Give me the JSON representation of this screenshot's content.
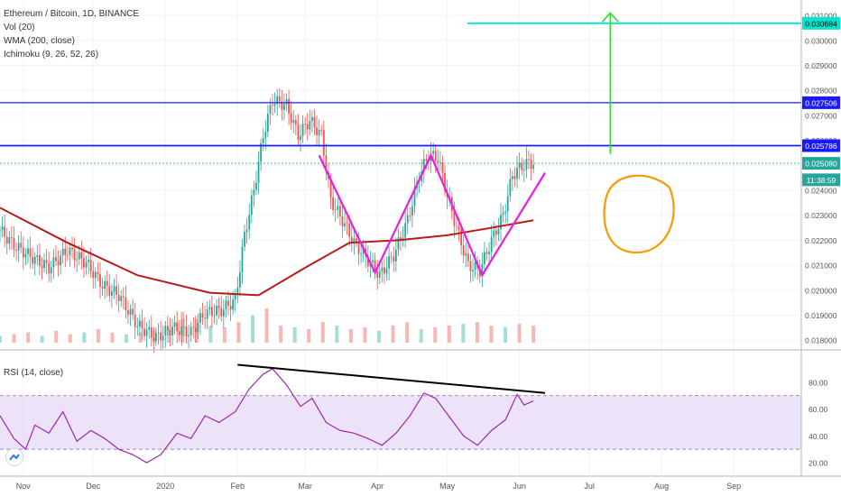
{
  "header": {
    "title": "Ethereum / Bitcoin, 1D, BINANCE",
    "indicators": [
      "Vol (20)",
      "WMA (200, close)",
      "Ichimoku (9, 26, 52, 26)"
    ],
    "rsi_label": "RSI (14, close)"
  },
  "colors": {
    "up": "#26a69a",
    "down": "#ef5350",
    "wma": "#b71c1c",
    "pattern": "#e91ee2",
    "target": "#00e5d0",
    "arrow": "#33dd33",
    "circle": "#ff9800",
    "hline": "#1a1aff",
    "rsi": "#9c27b0",
    "rsi_band": "#e6d7f5",
    "divergence": "#000000"
  },
  "price_labels": [
    {
      "text": "0.030684",
      "value": 0.030684,
      "bg": "#00e5d0",
      "fg": "#000000"
    },
    {
      "text": "0.027506",
      "value": 0.027506,
      "bg": "#1a1aff",
      "fg": "#ffffff"
    },
    {
      "text": "0.025786",
      "value": 0.025786,
      "bg": "#1a1aff",
      "fg": "#ffffff"
    },
    {
      "text": "0.025080",
      "value": 0.02508,
      "bg": "#26a69a",
      "fg": "#ffffff"
    },
    {
      "text": "11:38:59",
      "value": 0.02442,
      "bg": "#26a69a",
      "fg": "#ffffff"
    }
  ],
  "chart_data": [
    {
      "type": "candlestick",
      "title": "Ethereum / Bitcoin, 1D, BINANCE",
      "ylim": [
        0.0179,
        0.0314
      ],
      "y_ticks": [
        "0.018000",
        "0.019000",
        "0.020000",
        "0.021000",
        "0.022000",
        "0.023000",
        "0.024000",
        "0.025000",
        "0.026000",
        "0.027000",
        "0.028000",
        "0.029000",
        "0.030000",
        "0.031000"
      ],
      "x_ticks": [
        "Nov",
        "Dec",
        "2020",
        "Feb",
        "Mar",
        "Apr",
        "May",
        "Jun",
        "Jul",
        "Aug",
        "Sep"
      ],
      "x_range": [
        "2019-10-22",
        "2020-09-30"
      ],
      "close_path": [
        [
          "2019-10-22",
          0.0224
        ],
        [
          "2019-10-28",
          0.0218
        ],
        [
          "2019-11-05",
          0.0213
        ],
        [
          "2019-11-12",
          0.0209
        ],
        [
          "2019-11-20",
          0.0216
        ],
        [
          "2019-11-28",
          0.0211
        ],
        [
          "2019-12-05",
          0.0202
        ],
        [
          "2019-12-12",
          0.0198
        ],
        [
          "2019-12-20",
          0.0186
        ],
        [
          "2019-12-28",
          0.0181
        ],
        [
          "2020-01-04",
          0.0185
        ],
        [
          "2020-01-12",
          0.0183
        ],
        [
          "2020-01-18",
          0.0191
        ],
        [
          "2020-01-25",
          0.0192
        ],
        [
          "2020-01-31",
          0.0196
        ],
        [
          "2020-02-04",
          0.0222
        ],
        [
          "2020-02-08",
          0.024
        ],
        [
          "2020-02-12",
          0.0262
        ],
        [
          "2020-02-16",
          0.0276
        ],
        [
          "2020-02-22",
          0.0274
        ],
        [
          "2020-02-27",
          0.0262
        ],
        [
          "2020-03-03",
          0.0268
        ],
        [
          "2020-03-08",
          0.0262
        ],
        [
          "2020-03-12",
          0.0236
        ],
        [
          "2020-03-17",
          0.0228
        ],
        [
          "2020-03-22",
          0.0219
        ],
        [
          "2020-03-28",
          0.0212
        ],
        [
          "2020-04-02",
          0.0206
        ],
        [
          "2020-04-08",
          0.0214
        ],
        [
          "2020-04-14",
          0.0228
        ],
        [
          "2020-04-19",
          0.0246
        ],
        [
          "2020-04-23",
          0.0254
        ],
        [
          "2020-04-27",
          0.0253
        ],
        [
          "2020-05-01",
          0.0238
        ],
        [
          "2020-05-05",
          0.0225
        ],
        [
          "2020-05-10",
          0.021
        ],
        [
          "2020-05-15",
          0.0208
        ],
        [
          "2020-05-20",
          0.022
        ],
        [
          "2020-05-25",
          0.023
        ],
        [
          "2020-05-29",
          0.0246
        ],
        [
          "2020-06-01",
          0.0249
        ],
        [
          "2020-06-05",
          0.0251
        ],
        [
          "2020-06-07",
          0.02508
        ]
      ],
      "wma_200": [
        [
          "2019-10-22",
          0.0233
        ],
        [
          "2019-11-20",
          0.0219
        ],
        [
          "2019-12-20",
          0.0206
        ],
        [
          "2020-01-20",
          0.0199
        ],
        [
          "2020-02-10",
          0.0198
        ],
        [
          "2020-03-01",
          0.0209
        ],
        [
          "2020-03-20",
          0.0219
        ],
        [
          "2020-04-10",
          0.022
        ],
        [
          "2020-05-01",
          0.0222
        ],
        [
          "2020-05-20",
          0.0225
        ],
        [
          "2020-06-07",
          0.0228
        ]
      ],
      "volume_max": 1,
      "volume": [
        0.2,
        0.25,
        0.3,
        0.2,
        0.35,
        0.25,
        0.3,
        0.4,
        0.3,
        0.25,
        0.3,
        0.35,
        0.4,
        0.9,
        0.7,
        0.5,
        0.45,
        0.6,
        0.8,
        1.0,
        0.5,
        0.45,
        0.4,
        0.6,
        0.5,
        0.4,
        0.45,
        0.35,
        0.5,
        0.6,
        0.4,
        0.45,
        0.5,
        0.55,
        0.6,
        0.5,
        0.45,
        0.55,
        0.5
      ]
    },
    {
      "type": "line",
      "title": "RSI (14, close)",
      "ylim": [
        14,
        96
      ],
      "y_ticks": [
        "20.00",
        "40.00",
        "60.00",
        "80.00"
      ],
      "band": [
        30,
        70
      ],
      "series": [
        {
          "values": [
            [
              "2019-10-22",
              55
            ],
            [
              "2019-10-28",
              38
            ],
            [
              "2019-11-02",
              30
            ],
            [
              "2019-11-06",
              48
            ],
            [
              "2019-11-12",
              42
            ],
            [
              "2019-11-18",
              58
            ],
            [
              "2019-11-24",
              36
            ],
            [
              "2019-11-30",
              44
            ],
            [
              "2019-12-06",
              38
            ],
            [
              "2019-12-12",
              30
            ],
            [
              "2019-12-18",
              26
            ],
            [
              "2019-12-24",
              20
            ],
            [
              "2019-12-30",
              26
            ],
            [
              "2020-01-06",
              42
            ],
            [
              "2020-01-12",
              38
            ],
            [
              "2020-01-18",
              55
            ],
            [
              "2020-01-24",
              50
            ],
            [
              "2020-01-31",
              58
            ],
            [
              "2020-02-06",
              75
            ],
            [
              "2020-02-12",
              86
            ],
            [
              "2020-02-16",
              90
            ],
            [
              "2020-02-22",
              78
            ],
            [
              "2020-02-28",
              62
            ],
            [
              "2020-03-04",
              68
            ],
            [
              "2020-03-10",
              50
            ],
            [
              "2020-03-16",
              44
            ],
            [
              "2020-03-22",
              42
            ],
            [
              "2020-03-28",
              38
            ],
            [
              "2020-04-03",
              33
            ],
            [
              "2020-04-09",
              42
            ],
            [
              "2020-04-15",
              55
            ],
            [
              "2020-04-21",
              72
            ],
            [
              "2020-04-26",
              68
            ],
            [
              "2020-05-02",
              54
            ],
            [
              "2020-05-08",
              40
            ],
            [
              "2020-05-14",
              33
            ],
            [
              "2020-05-20",
              44
            ],
            [
              "2020-05-26",
              52
            ],
            [
              "2020-05-31",
              71
            ],
            [
              "2020-06-03",
              63
            ],
            [
              "2020-06-07",
              66
            ]
          ]
        }
      ],
      "divergence_line": [
        [
          "2020-02-01",
          93
        ],
        [
          "2020-06-12",
          72
        ]
      ]
    }
  ]
}
